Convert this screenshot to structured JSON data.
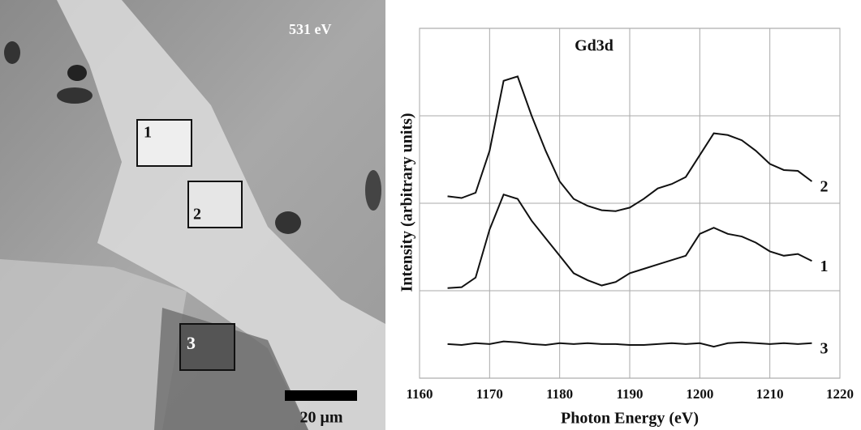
{
  "image": {
    "energy_label": "531 eV",
    "regions": [
      "1",
      "2",
      "3"
    ],
    "scale_bar": "20 μm"
  },
  "chart_data": {
    "type": "line",
    "title": "Gd3d",
    "x_label": "Photon Energy (eV)",
    "y_label": "Intensity (arbitrary units)",
    "x": [
      1164,
      1166,
      1168,
      1170,
      1172,
      1174,
      1176,
      1178,
      1180,
      1182,
      1184,
      1186,
      1188,
      1190,
      1192,
      1194,
      1196,
      1198,
      1200,
      1202,
      1204,
      1206,
      1208,
      1210,
      1212,
      1214,
      1216
    ],
    "series": [
      {
        "name": "2",
        "color": "#111111",
        "values": [
          2.08,
          2.06,
          2.12,
          2.6,
          3.4,
          3.45,
          3.0,
          2.6,
          2.25,
          2.05,
          1.97,
          1.92,
          1.91,
          1.95,
          2.05,
          2.17,
          2.22,
          2.3,
          2.55,
          2.8,
          2.78,
          2.72,
          2.6,
          2.45,
          2.38,
          2.37,
          2.25
        ]
      },
      {
        "name": "1",
        "color": "#111111",
        "values": [
          1.03,
          1.04,
          1.15,
          1.7,
          2.1,
          2.05,
          1.8,
          1.6,
          1.4,
          1.2,
          1.12,
          1.06,
          1.1,
          1.2,
          1.25,
          1.3,
          1.35,
          1.4,
          1.65,
          1.72,
          1.65,
          1.62,
          1.55,
          1.45,
          1.4,
          1.42,
          1.34
        ]
      },
      {
        "name": "3",
        "color": "#111111",
        "values": [
          0.39,
          0.38,
          0.4,
          0.39,
          0.42,
          0.41,
          0.39,
          0.38,
          0.4,
          0.39,
          0.4,
          0.39,
          0.39,
          0.38,
          0.38,
          0.39,
          0.4,
          0.39,
          0.4,
          0.36,
          0.4,
          0.41,
          0.4,
          0.39,
          0.4,
          0.39,
          0.4
        ]
      }
    ],
    "xlim": [
      1160,
      1220
    ],
    "xticks": [
      1160,
      1170,
      1180,
      1190,
      1200,
      1210,
      1220
    ],
    "ylim": [
      0,
      4
    ],
    "ygrid": [
      1,
      2,
      3
    ],
    "grid": true
  }
}
